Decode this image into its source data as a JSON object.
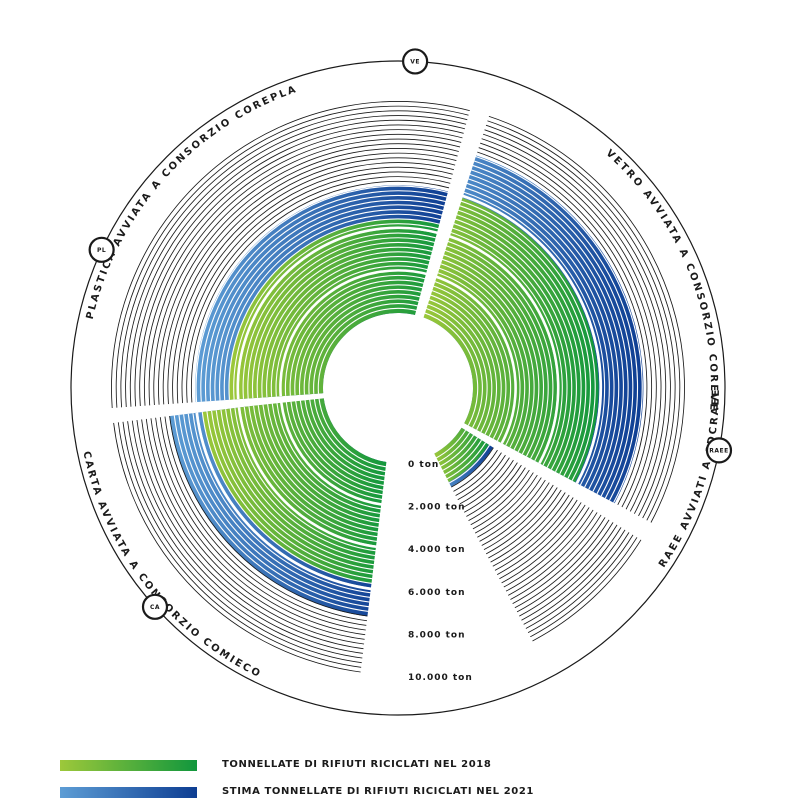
{
  "chart_data": {
    "type": "radial-bar",
    "unit": "ton",
    "tick_labels": [
      "0 ton",
      "2.000 ton",
      "4.000 ton",
      "6.000 ton",
      "8.000 ton",
      "10.000 ton"
    ],
    "rlim": [
      0,
      10000
    ],
    "categories": [
      {
        "key": "ve",
        "badge": "VE",
        "label": "VETRO AVVIATA A CONSORZIO COREVE",
        "value_2018": 5900,
        "value_2021": 8000
      },
      {
        "key": "raee",
        "badge": "RAEE",
        "label": "RAEE AVVIATI A CDCRAEE",
        "value_2018": 1500,
        "value_2021": 1750
      },
      {
        "key": "ca",
        "badge": "CA",
        "label": "CARTA AVVIATA A CONSORZIO COMIECO",
        "value_2018": 5750,
        "value_2021": 7300
      },
      {
        "key": "pl",
        "badge": "PL",
        "label": "PLASTICA AVVIATA A CONSORZIO COREPLA",
        "value_2018": 4400,
        "value_2021": 6000
      }
    ],
    "series": [
      {
        "name": "TONNELLATE DI RIFIUTI RICICLATI NEL 2018",
        "color_start": "#9dc83a",
        "color_end": "#11973d"
      },
      {
        "name": "STIMA TONNELLATE DI RIFIUTI RICICLATI NEL 2021",
        "color_start": "#5d9dd5",
        "color_end": "#0d3d92"
      }
    ]
  },
  "legend": {
    "item_2018": "TONNELLATE DI RIFIUTI RICICLATI NEL 2018",
    "item_2021": "STIMA TONNELLATE DI RIFIUTI RICICLATI NEL 2021"
  }
}
